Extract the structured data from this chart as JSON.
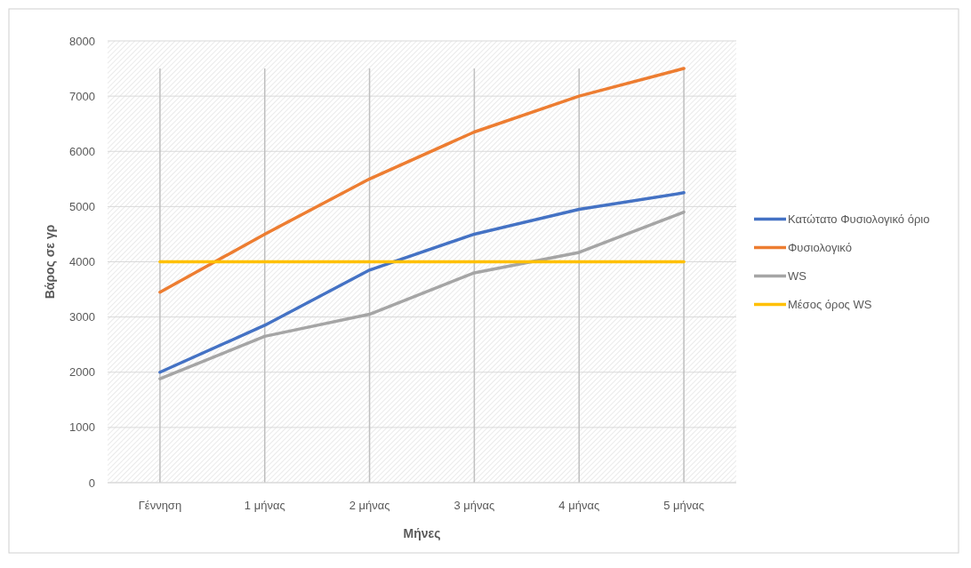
{
  "chart_data": {
    "type": "line",
    "xlabel": "Μήνες",
    "ylabel": "Βάρος σε γρ",
    "categories": [
      "Γέννηση",
      "1 μήνας",
      "2 μήνας",
      "3 μήνας",
      "4 μήνας",
      "5 μήνας"
    ],
    "series": [
      {
        "name": "Κατώτατο Φυσιολογικό όριο",
        "color": "#4472c4",
        "values": [
          2000,
          2850,
          3850,
          4500,
          4950,
          5250
        ]
      },
      {
        "name": "Φυσιολογικό",
        "color": "#ed7d31",
        "values": [
          3450,
          4500,
          5500,
          6350,
          7000,
          7500
        ]
      },
      {
        "name": "WS",
        "color": "#a5a5a5",
        "values": [
          1880,
          2650,
          3050,
          3800,
          4170,
          4900
        ]
      },
      {
        "name": "Μέσος όρος WS",
        "color": "#ffc000",
        "values": [
          4000,
          4000,
          4000,
          4000,
          4000,
          4000
        ]
      }
    ],
    "ylim": [
      0,
      8000
    ],
    "yticks": [
      0,
      1000,
      2000,
      3000,
      4000,
      5000,
      6000,
      7000,
      8000
    ],
    "grid": true,
    "legend": "right",
    "marker": "none",
    "line_style": "solid"
  }
}
